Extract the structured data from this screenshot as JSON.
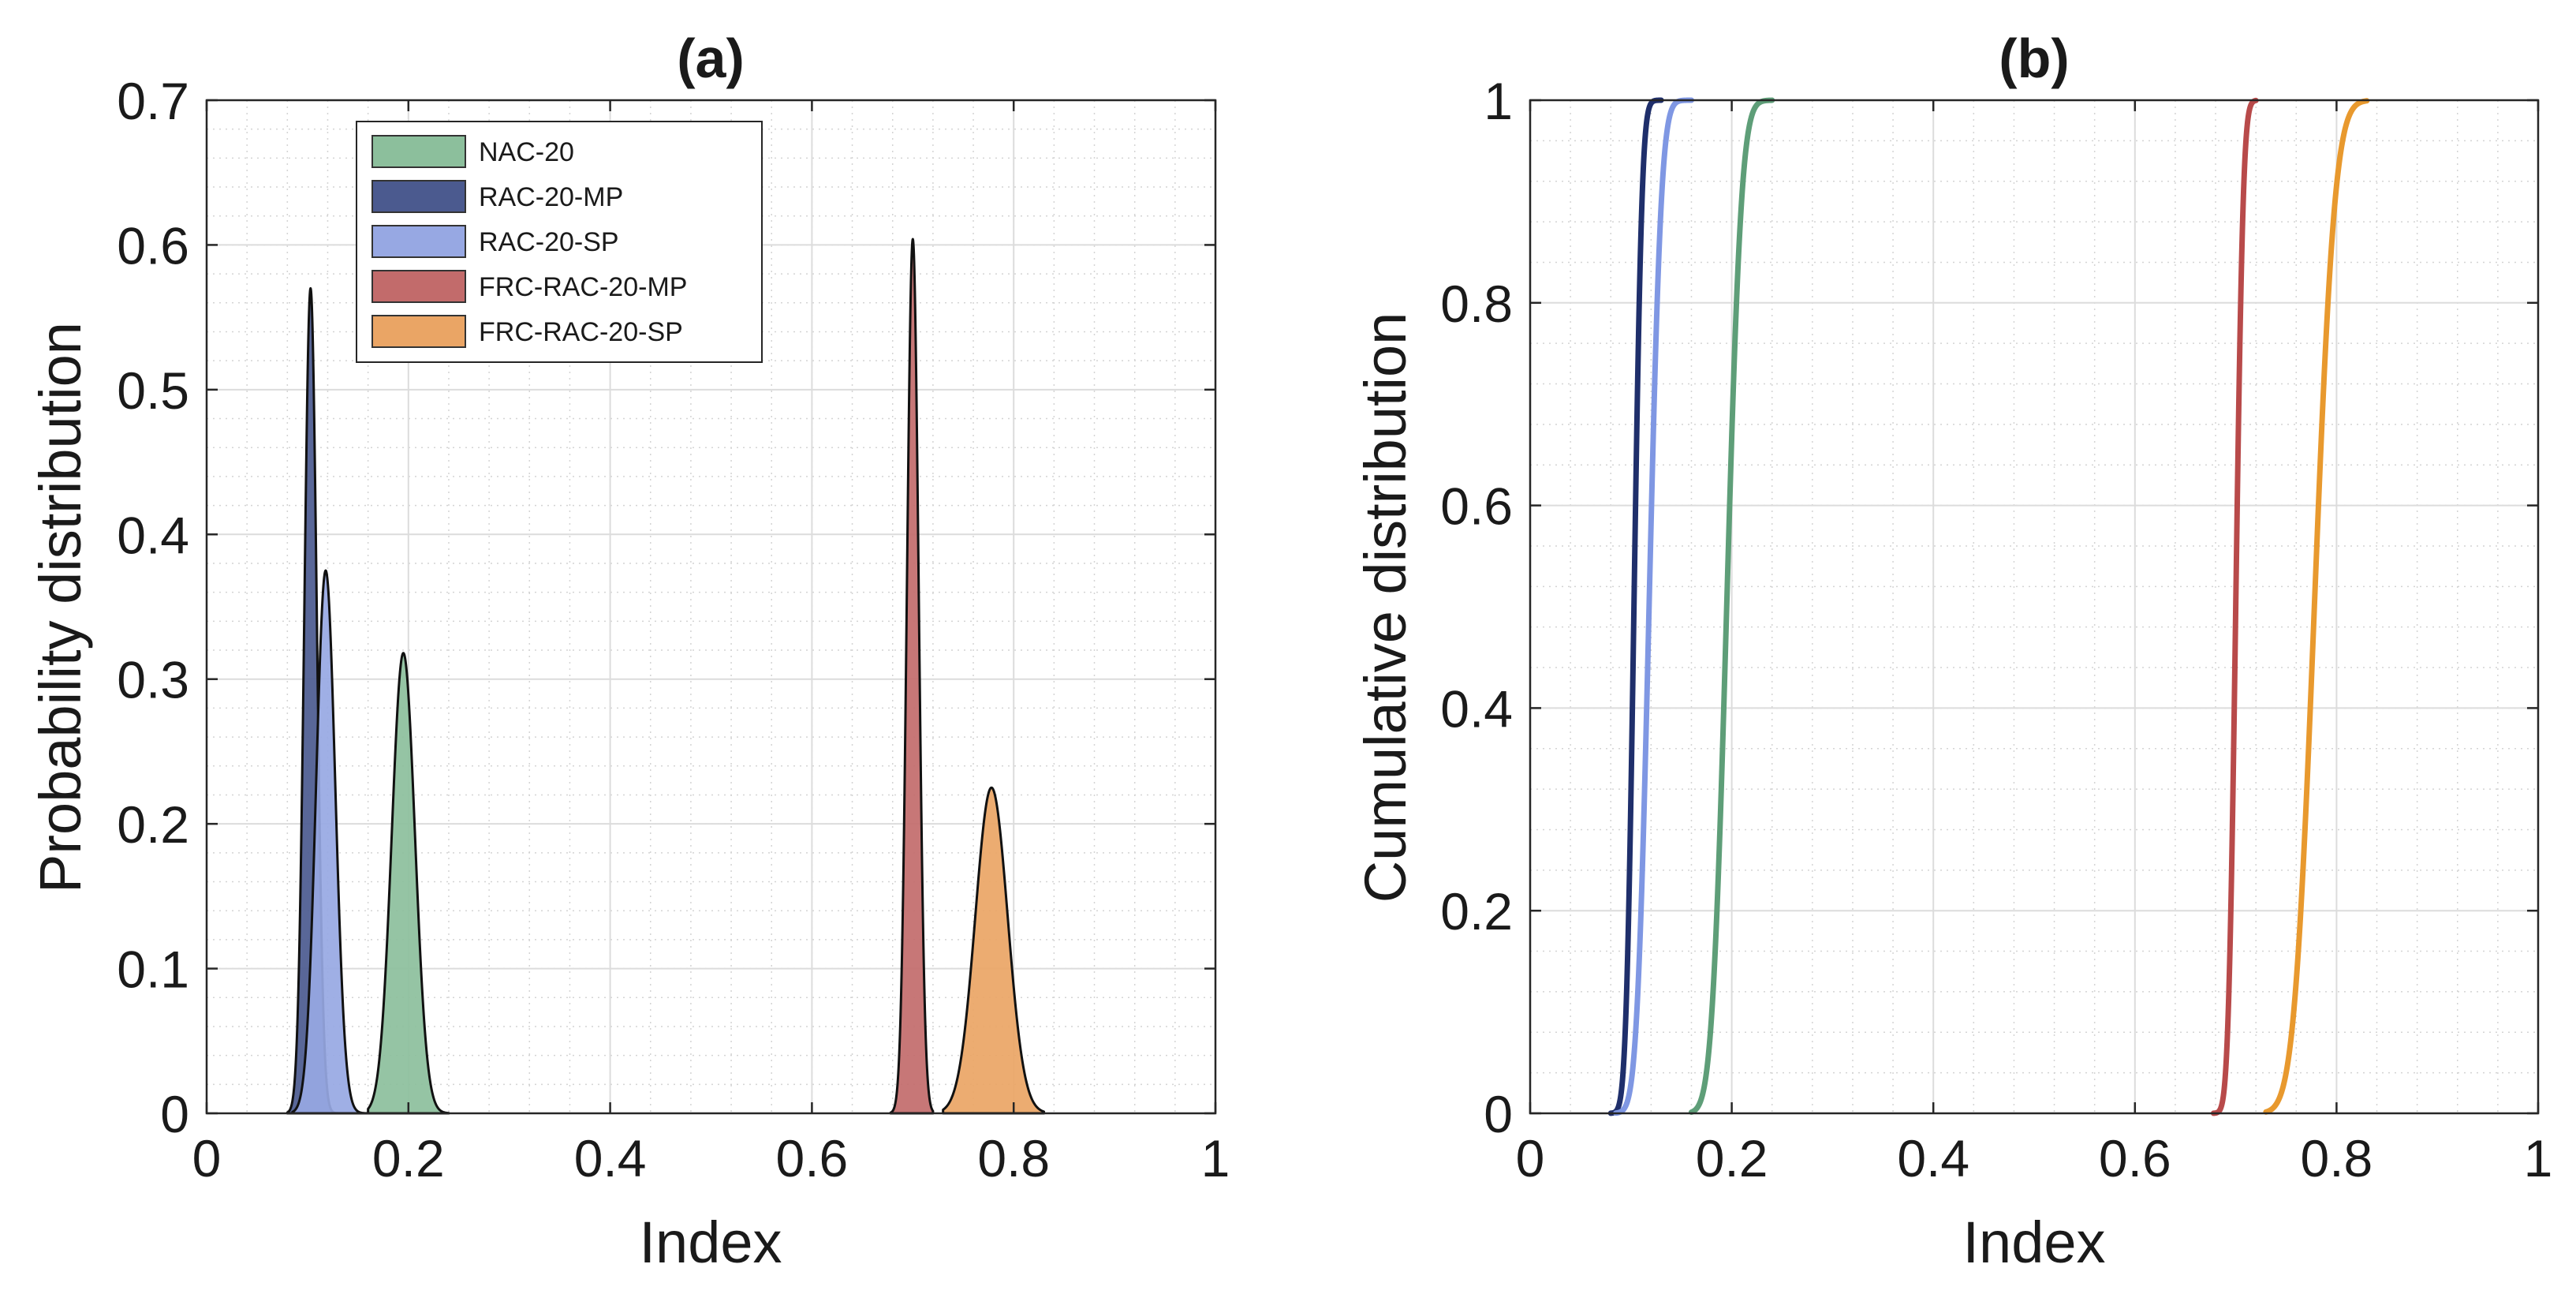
{
  "chart_data": [
    {
      "type": "area",
      "title": "(a)",
      "xlabel": "Index",
      "ylabel": "Probability distribution",
      "xlim": [
        0,
        1
      ],
      "ylim": [
        0,
        0.7
      ],
      "xticks": [
        "0",
        "0.2",
        "0.4",
        "0.6",
        "0.8",
        "1"
      ],
      "yticks": [
        "0",
        "0.1",
        "0.2",
        "0.3",
        "0.4",
        "0.5",
        "0.6",
        "0.7"
      ],
      "grid": true,
      "legend_position": "top-left",
      "series": [
        {
          "name": "NAC-20",
          "color": "#8cbf9c",
          "distribution": {
            "center": 0.195,
            "peak": 0.318,
            "sigma": 0.0115,
            "min": 0.16,
            "max": 0.24
          }
        },
        {
          "name": "RAC-20-MP",
          "color": "#4b5a8f",
          "distribution": {
            "center": 0.103,
            "peak": 0.57,
            "sigma": 0.0062,
            "min": 0.08,
            "max": 0.13
          }
        },
        {
          "name": "RAC-20-SP",
          "color": "#97a8e3",
          "distribution": {
            "center": 0.118,
            "peak": 0.375,
            "sigma": 0.0095,
            "min": 0.085,
            "max": 0.16
          }
        },
        {
          "name": "FRC-RAC-20-MP",
          "color": "#c26b6b",
          "distribution": {
            "center": 0.7,
            "peak": 0.604,
            "sigma": 0.0058,
            "min": 0.678,
            "max": 0.72
          }
        },
        {
          "name": "FRC-RAC-20-SP",
          "color": "#eaa565",
          "distribution": {
            "center": 0.778,
            "peak": 0.225,
            "sigma": 0.016,
            "min": 0.73,
            "max": 0.83
          }
        }
      ]
    },
    {
      "type": "line",
      "title": "(b)",
      "xlabel": "Index",
      "ylabel": "Cumulative distribution",
      "xlim": [
        0,
        1
      ],
      "ylim": [
        0,
        1
      ],
      "xticks": [
        "0",
        "0.2",
        "0.4",
        "0.6",
        "0.8",
        "1"
      ],
      "yticks": [
        "0",
        "0.2",
        "0.4",
        "0.6",
        "0.8",
        "1"
      ],
      "grid": true,
      "series": [
        {
          "name": "RAC-20-MP",
          "color": "#1f2f6b",
          "distribution": {
            "center": 0.103,
            "sigma": 0.0062,
            "min": 0.08,
            "max": 0.13
          }
        },
        {
          "name": "RAC-20-SP",
          "color": "#7f97e3",
          "distribution": {
            "center": 0.118,
            "sigma": 0.0095,
            "min": 0.085,
            "max": 0.16
          }
        },
        {
          "name": "NAC-20",
          "color": "#5e9e78",
          "distribution": {
            "center": 0.195,
            "sigma": 0.0115,
            "min": 0.16,
            "max": 0.24
          }
        },
        {
          "name": "FRC-RAC-20-MP",
          "color": "#b84a4a",
          "distribution": {
            "center": 0.7,
            "sigma": 0.0058,
            "min": 0.678,
            "max": 0.72
          }
        },
        {
          "name": "FRC-RAC-20-SP",
          "color": "#e8992e",
          "distribution": {
            "center": 0.778,
            "sigma": 0.016,
            "min": 0.73,
            "max": 0.83
          }
        }
      ]
    }
  ]
}
